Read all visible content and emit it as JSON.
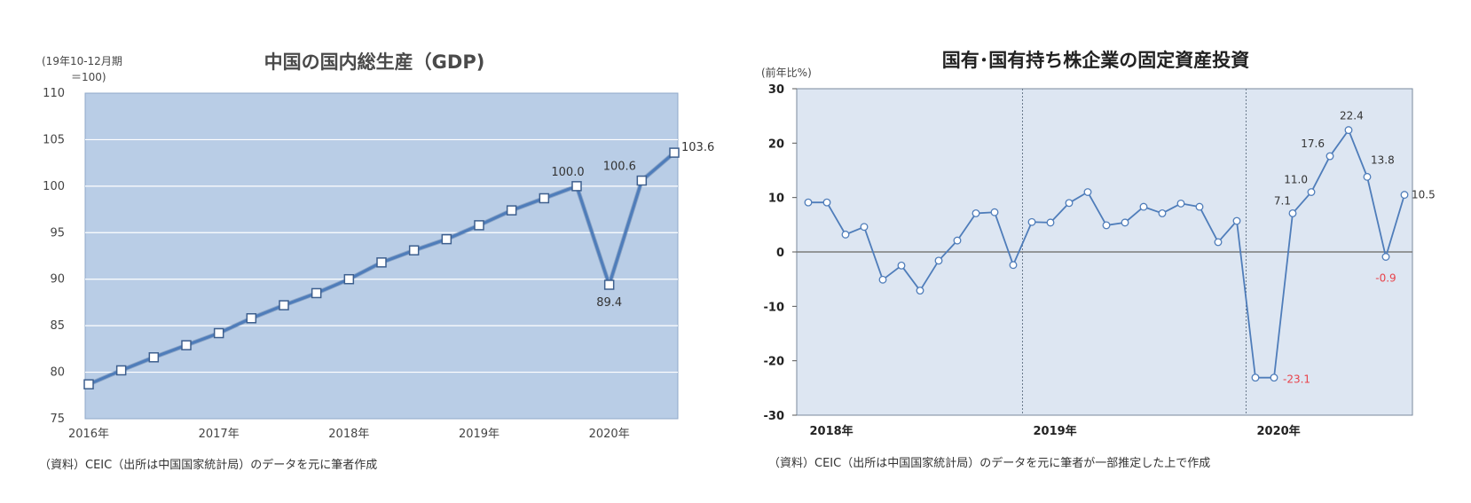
{
  "chart_data": [
    {
      "type": "line",
      "title": "中国の国内総生産（GDP)",
      "unit_label_line1": "(19年10-12月期",
      "unit_label_line2": "＝100)",
      "xlabel": "",
      "ylabel": "",
      "ylim": [
        75,
        110
      ],
      "yticks": [
        75,
        80,
        85,
        90,
        95,
        100,
        105,
        110
      ],
      "x_tick_labels": [
        "2016年",
        "2017年",
        "2018年",
        "2019年",
        "2020年"
      ],
      "quarters": [
        "2016Q1",
        "2016Q2",
        "2016Q3",
        "2016Q4",
        "2017Q1",
        "2017Q2",
        "2017Q3",
        "2017Q4",
        "2018Q1",
        "2018Q2",
        "2018Q3",
        "2018Q4",
        "2019Q1",
        "2019Q2",
        "2019Q3",
        "2019Q4",
        "2020Q1",
        "2020Q2",
        "2020Q3"
      ],
      "values": [
        78.7,
        80.2,
        81.6,
        82.9,
        84.2,
        85.8,
        87.2,
        88.5,
        90.0,
        91.8,
        93.1,
        94.3,
        95.8,
        97.4,
        98.7,
        100.0,
        89.4,
        100.6,
        103.6
      ],
      "data_labels": [
        {
          "x": "2019Q4",
          "text": "100.0"
        },
        {
          "x": "2020Q1",
          "text": "89.4"
        },
        {
          "x": "2020Q2",
          "text": "100.6"
        },
        {
          "x": "2020Q3",
          "text": "103.6"
        }
      ],
      "grid": true,
      "line_color": "#4f7dba",
      "plot_bg": "#b9cde6",
      "source": "（資料）CEIC（出所は中国国家統計局）のデータを元に筆者作成"
    },
    {
      "type": "line",
      "title": "国有･国有持ち株企業の固定資産投資",
      "unit_label": "(前年比%)",
      "xlabel": "",
      "ylabel": "",
      "ylim": [
        -30,
        30
      ],
      "yticks": [
        -30,
        -20,
        -10,
        0,
        10,
        20,
        30
      ],
      "x_tick_labels": [
        "2018年",
        "2019年",
        "2020年"
      ],
      "months": [
        "2018-01",
        "2018-02",
        "2018-03",
        "2018-04",
        "2018-05",
        "2018-06",
        "2018-07",
        "2018-08",
        "2018-09",
        "2018-10",
        "2018-11",
        "2018-12",
        "2019-01",
        "2019-02",
        "2019-03",
        "2019-04",
        "2019-05",
        "2019-06",
        "2019-07",
        "2019-08",
        "2019-09",
        "2019-10",
        "2019-11",
        "2019-12",
        "2020-01",
        "2020-02",
        "2020-03",
        "2020-04",
        "2020-05",
        "2020-06",
        "2020-07",
        "2020-08",
        "2020-09"
      ],
      "values": [
        9.1,
        9.1,
        3.2,
        4.6,
        -5.1,
        -2.5,
        -7.1,
        -1.6,
        2.1,
        7.1,
        7.3,
        -2.4,
        5.5,
        5.4,
        9.0,
        11.0,
        4.9,
        5.4,
        8.3,
        7.1,
        8.9,
        8.3,
        1.8,
        5.7,
        -23.1,
        -23.1,
        7.1,
        11.0,
        17.6,
        22.4,
        13.8,
        -0.9,
        10.5
      ],
      "data_labels": [
        {
          "x": "2020-02",
          "text": "-23.1",
          "color": "#e8424a"
        },
        {
          "x": "2020-03",
          "text": "7.1",
          "color": "#333333"
        },
        {
          "x": "2020-04",
          "text": "11.0",
          "color": "#333333"
        },
        {
          "x": "2020-05",
          "text": "17.6",
          "color": "#333333"
        },
        {
          "x": "2020-06",
          "text": "22.4",
          "color": "#333333"
        },
        {
          "x": "2020-07",
          "text": "13.8",
          "color": "#333333"
        },
        {
          "x": "2020-08",
          "text": "-0.9",
          "color": "#e8424a"
        },
        {
          "x": "2020-09",
          "text": "10.5",
          "color": "#333333"
        }
      ],
      "grid": false,
      "line_color": "#4f7dba",
      "plot_bg": "#dde6f2",
      "source": "（資料）CEIC（出所は中国国家統計局）のデータを元に筆者が一部推定した上で作成"
    }
  ]
}
